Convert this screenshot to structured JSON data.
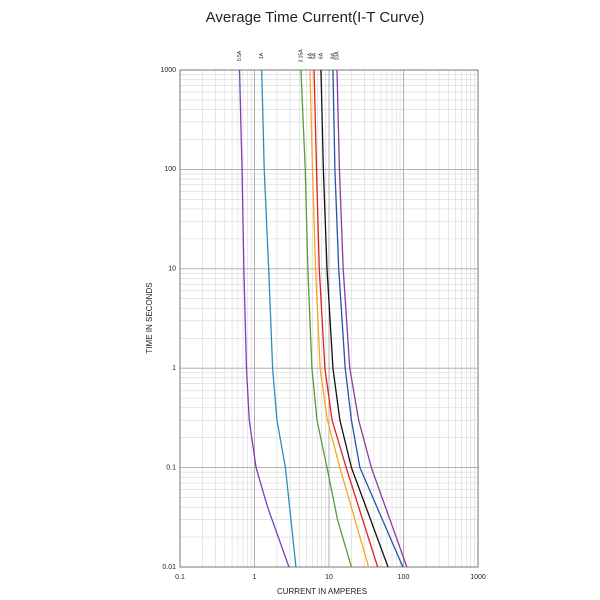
{
  "chart_data": {
    "type": "line",
    "title": "Average Time Current(I-T Curve)",
    "x_label": "CURRENT IN AMPERES",
    "y_label": "TIME IN SECONDS",
    "x_log": true,
    "y_log": true,
    "grid": true,
    "xlim": [
      0.1,
      1000
    ],
    "ylim": [
      0.01,
      1000
    ],
    "xticks": [
      0.1,
      1,
      10,
      100,
      1000
    ],
    "yticks": [
      0.01,
      0.1,
      1,
      10,
      100,
      1000
    ],
    "series": [
      {
        "name": "0.5A",
        "color": "#7b3fb0",
        "x": [
          0.63,
          0.68,
          0.72,
          0.78,
          0.85,
          1.05,
          1.5,
          2.9
        ],
        "values": [
          1000,
          100,
          10,
          1,
          0.3,
          0.1,
          0.04,
          0.01
        ]
      },
      {
        "name": "1A",
        "color": "#2e8bc0",
        "x": [
          1.25,
          1.35,
          1.55,
          1.75,
          2.0,
          2.6,
          3.6
        ],
        "values": [
          1000,
          100,
          10,
          1,
          0.3,
          0.1,
          0.01
        ]
      },
      {
        "name": "3.15A",
        "color": "#5a9a3a",
        "x": [
          4.2,
          4.8,
          5.2,
          5.9,
          6.9,
          9.4,
          13,
          20
        ],
        "values": [
          1000,
          100,
          10,
          1,
          0.3,
          0.1,
          0.03,
          0.01
        ]
      },
      {
        "name": "4A",
        "color": "#f5a623",
        "x": [
          5.55,
          6.0,
          6.6,
          7.6,
          9.5,
          14,
          34
        ],
        "values": [
          1000,
          100,
          10,
          1,
          0.3,
          0.1,
          0.01
        ]
      },
      {
        "name": "5A",
        "color": "#e02020",
        "x": [
          6.3,
          6.8,
          7.4,
          8.8,
          11,
          17,
          45
        ],
        "values": [
          1000,
          100,
          10,
          1,
          0.3,
          0.1,
          0.01
        ]
      },
      {
        "name": "6A",
        "color": "#111111",
        "x": [
          7.8,
          8.4,
          9.4,
          11.3,
          14,
          20,
          62
        ],
        "values": [
          1000,
          100,
          10,
          1,
          0.3,
          0.1,
          0.01
        ]
      },
      {
        "name": "8A",
        "color": "#2255aa",
        "x": [
          11.3,
          12,
          13.5,
          16.5,
          20,
          26,
          98
        ],
        "values": [
          1000,
          100,
          10,
          1,
          0.3,
          0.1,
          0.01
        ]
      },
      {
        "name": "10A",
        "color": "#8a3ca0",
        "x": [
          12.8,
          13.8,
          15.5,
          19,
          25,
          37,
          111
        ],
        "values": [
          1000,
          100,
          10,
          1,
          0.3,
          0.1,
          0.01
        ]
      }
    ]
  }
}
